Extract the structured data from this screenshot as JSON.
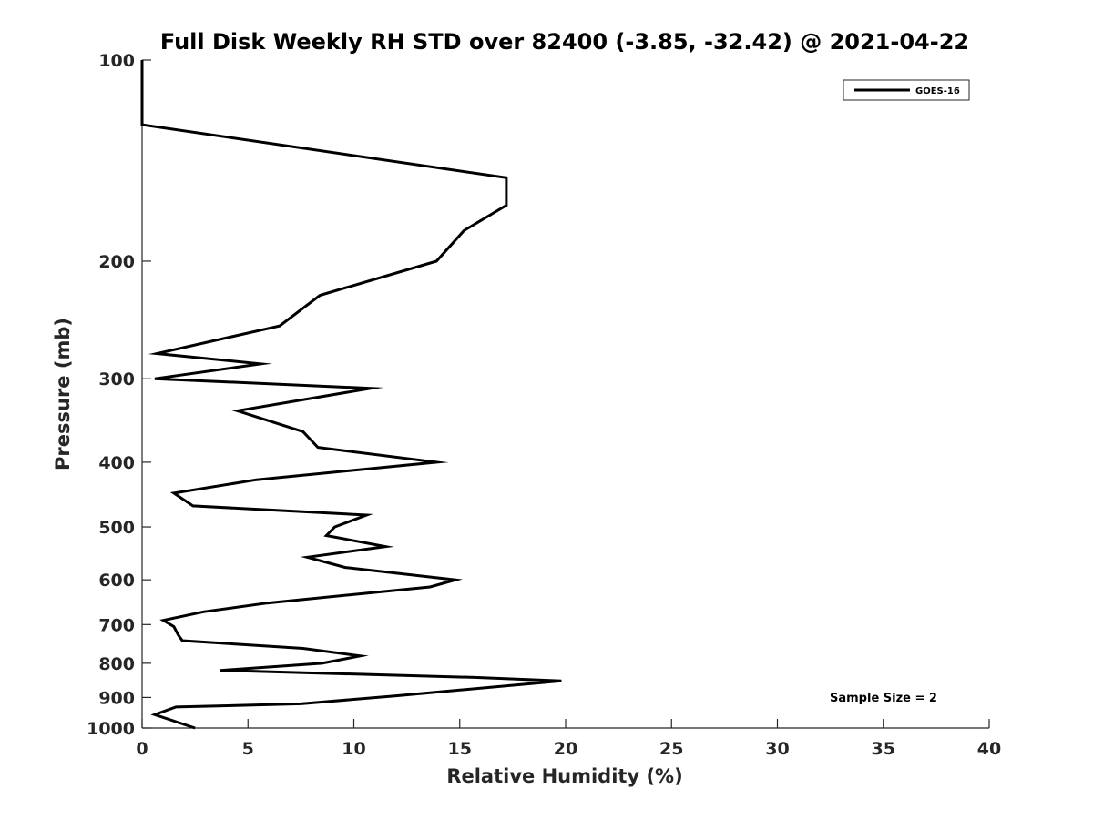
{
  "chart_data": {
    "type": "line",
    "title": "Full Disk Weekly RH STD over 82400 (-3.85, -32.42) @ 2021-04-22",
    "xlabel": "Relative Humidity (%)",
    "ylabel": "Pressure (mb)",
    "xlim": [
      0,
      40
    ],
    "ylim": [
      100,
      1000
    ],
    "y_scale": "log",
    "y_reversed": true,
    "x_ticks": [
      0,
      5,
      10,
      15,
      20,
      25,
      30,
      35,
      40
    ],
    "y_ticks": [
      100,
      200,
      300,
      400,
      500,
      600,
      700,
      800,
      900,
      1000
    ],
    "grid": false,
    "legend_position": "top-right",
    "annotation": "Sample Size = 2",
    "series": [
      {
        "name": "GOES-16",
        "color": "#000000",
        "points": [
          [
            0,
            100
          ],
          [
            0,
            125
          ],
          [
            17.2,
            150
          ],
          [
            17.2,
            165
          ],
          [
            15.2,
            180
          ],
          [
            13.9,
            200
          ],
          [
            8.4,
            225
          ],
          [
            6.5,
            250
          ],
          [
            0.7,
            275
          ],
          [
            5.6,
            285
          ],
          [
            0.6,
            300
          ],
          [
            10.8,
            310
          ],
          [
            4.5,
            335
          ],
          [
            7.6,
            360
          ],
          [
            8.3,
            380
          ],
          [
            13.9,
            400
          ],
          [
            5.4,
            425
          ],
          [
            1.5,
            445
          ],
          [
            2.4,
            465
          ],
          [
            10.6,
            480
          ],
          [
            9.1,
            500
          ],
          [
            8.7,
            515
          ],
          [
            11.5,
            535
          ],
          [
            7.8,
            555
          ],
          [
            9.6,
            575
          ],
          [
            14.8,
            600
          ],
          [
            13.6,
            615
          ],
          [
            5.9,
            650
          ],
          [
            2.9,
            670
          ],
          [
            1.0,
            690
          ],
          [
            1.5,
            705
          ],
          [
            1.7,
            725
          ],
          [
            1.9,
            740
          ],
          [
            7.6,
            760
          ],
          [
            10.3,
            780
          ],
          [
            8.5,
            800
          ],
          [
            3.7,
            820
          ],
          [
            15.7,
            840
          ],
          [
            19.8,
            850
          ],
          [
            12.0,
            895
          ],
          [
            7.5,
            920
          ],
          [
            1.6,
            930
          ],
          [
            0.6,
            955
          ],
          [
            2.5,
            1000
          ]
        ]
      }
    ]
  }
}
